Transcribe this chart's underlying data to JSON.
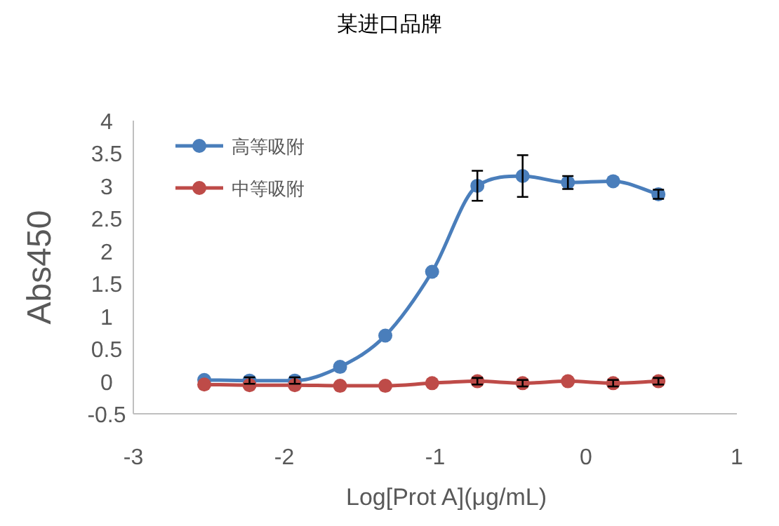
{
  "chart_data": {
    "type": "line",
    "title": "某进口品牌",
    "xlabel": "Log[Prot A](μg/mL)",
    "ylabel": "Abs450",
    "x": [
      -2.53,
      -2.23,
      -1.93,
      -1.63,
      -1.33,
      -1.02,
      -0.72,
      -0.42,
      -0.12,
      0.18,
      0.48
    ],
    "series": [
      {
        "name": "高等吸附",
        "color": "#4a7ebb",
        "values": [
          0.02,
          0.01,
          0.01,
          0.22,
          0.7,
          1.68,
          3.0,
          3.15,
          3.05,
          3.07,
          2.87
        ],
        "errors": [
          null,
          0.05,
          0.05,
          null,
          null,
          null,
          0.23,
          0.32,
          0.1,
          null,
          0.07
        ]
      },
      {
        "name": "中等吸附",
        "color": "#be4b48",
        "values": [
          -0.05,
          -0.06,
          -0.06,
          -0.07,
          -0.07,
          -0.03,
          0.0,
          -0.03,
          0.0,
          -0.03,
          0.0
        ],
        "errors": [
          null,
          null,
          null,
          null,
          null,
          null,
          0.05,
          0.05,
          null,
          0.05,
          0.05
        ]
      }
    ],
    "xlim": [
      -3,
      1
    ],
    "xticks": [
      -3,
      -2,
      -1,
      0,
      1
    ],
    "ylim": [
      -0.5,
      4
    ],
    "yticks": [
      -0.5,
      0,
      0.5,
      1,
      1.5,
      2,
      2.5,
      3,
      3.5,
      4
    ],
    "grid": false,
    "legend": "top left",
    "marker": "circle",
    "line_style": "solid"
  }
}
